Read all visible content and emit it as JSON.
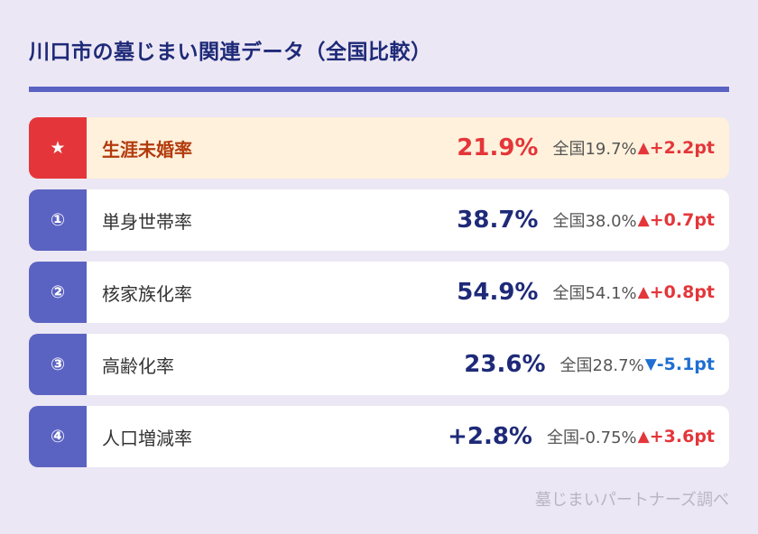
{
  "title": "川口市の墓じまい関連データ（全国比較）",
  "rows": [
    {
      "badge": "★",
      "label": "生涯未婚率",
      "value": "21.9%",
      "national": "全国19.7%",
      "arrow": "▲",
      "diff": "+2.2pt",
      "direction": "up",
      "highlight": true
    },
    {
      "badge": "①",
      "label": "単身世帯率",
      "value": "38.7%",
      "national": "全国38.0%",
      "arrow": "▲",
      "diff": "+0.7pt",
      "direction": "up",
      "highlight": false
    },
    {
      "badge": "②",
      "label": "核家族化率",
      "value": "54.9%",
      "national": "全国54.1%",
      "arrow": "▲",
      "diff": "+0.8pt",
      "direction": "up",
      "highlight": false
    },
    {
      "badge": "③",
      "label": "高齢化率",
      "value": "23.6%",
      "national": "全国28.7%",
      "arrow": "▼",
      "diff": "-5.1pt",
      "direction": "down",
      "highlight": false
    },
    {
      "badge": "④",
      "label": "人口増減率",
      "value": "+2.8%",
      "national": "全国-0.75%",
      "arrow": "▲",
      "diff": "+3.6pt",
      "direction": "up",
      "highlight": false
    }
  ],
  "source": "墓じまいパートナーズ調べ",
  "colors": {
    "background": "#ece7f4",
    "accent": "#5b63c2",
    "highlight_badge": "#e4363a",
    "highlight_row": "#fff1dc",
    "up": "#e4363a",
    "down": "#1f6fd1",
    "value": "#1e2a78"
  }
}
